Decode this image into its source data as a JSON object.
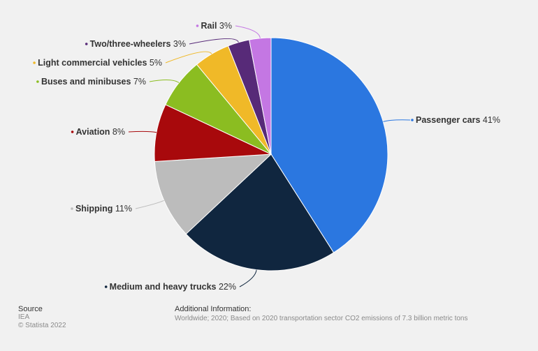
{
  "chart_data": {
    "type": "pie",
    "slices": [
      {
        "label": "Passenger cars",
        "value": 41,
        "display": "41%",
        "color": "#2b77e0"
      },
      {
        "label": "Medium and heavy trucks",
        "value": 22,
        "display": "22%",
        "color": "#10263f"
      },
      {
        "label": "Shipping",
        "value": 11,
        "display": "11%",
        "color": "#bcbcbc"
      },
      {
        "label": "Aviation",
        "value": 8,
        "display": "8%",
        "color": "#a8090c"
      },
      {
        "label": "Buses and minibuses",
        "value": 7,
        "display": "7%",
        "color": "#8bbd21"
      },
      {
        "label": "Light commercial vehicles",
        "value": 5,
        "display": "5%",
        "color": "#f0b928"
      },
      {
        "label": "Two/three-wheelers",
        "value": 3,
        "display": "3%",
        "color": "#572a78"
      },
      {
        "label": "Rail",
        "value": 3,
        "display": "3%",
        "color": "#c477e3"
      }
    ],
    "start_angle": "12 o'clock",
    "direction": "clockwise",
    "legend": "none",
    "labels": "outside with leader lines"
  },
  "footer": {
    "source_title": "Source",
    "source_name": "IEA",
    "copyright": "© Statista 2022",
    "info_title": "Additional Information:",
    "info_text": "Worldwide; 2020; Based on 2020 transportation sector CO2 emissions of 7.3 billion metric tons"
  }
}
